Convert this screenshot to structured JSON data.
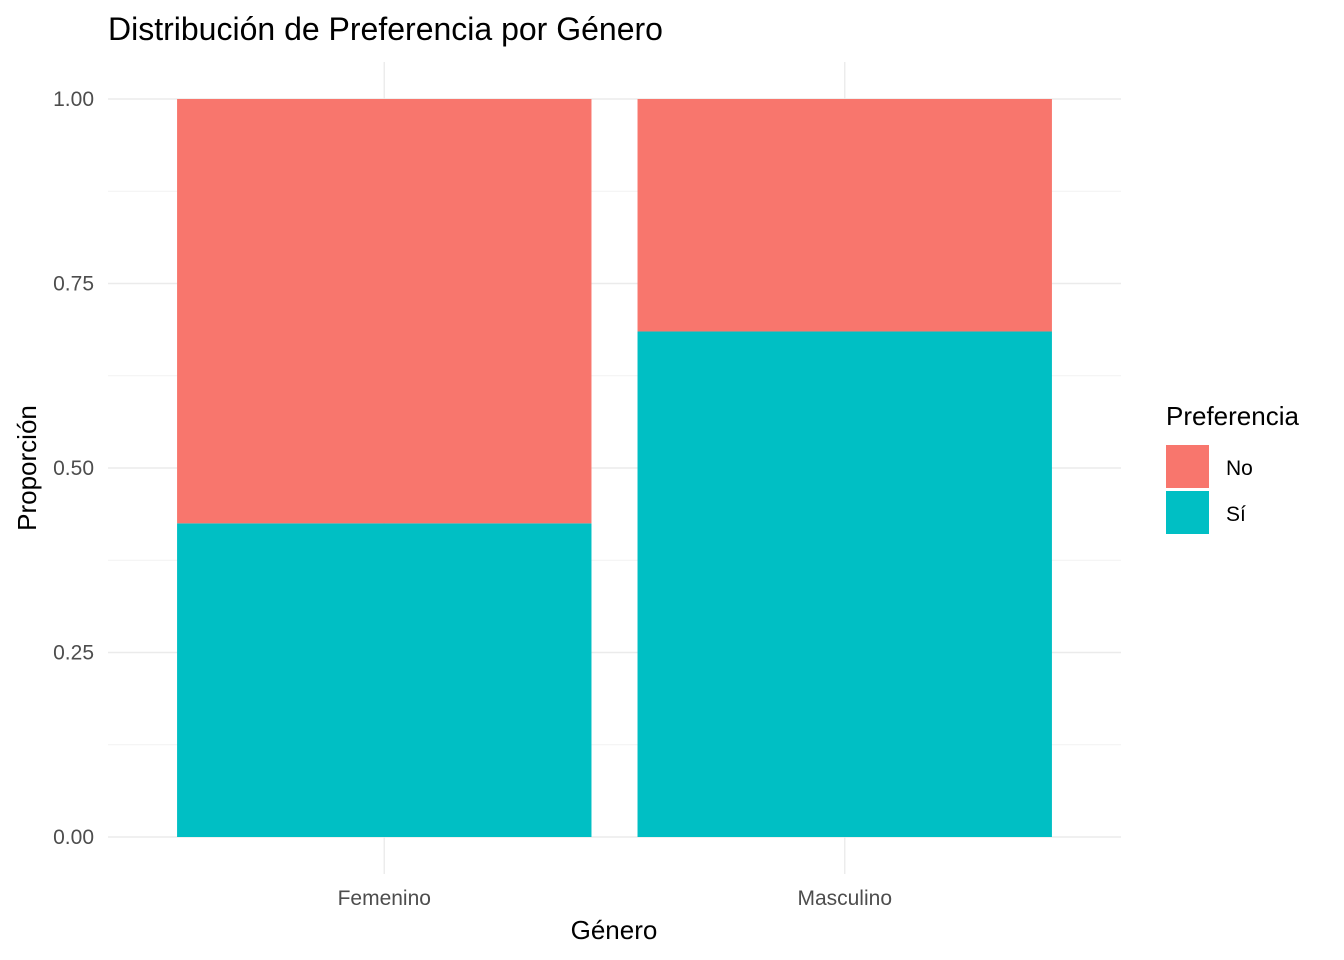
{
  "chart_data": {
    "type": "bar",
    "stacked": true,
    "title": "Distribución de Preferencia por Género",
    "xlabel": "Género",
    "ylabel": "Proporción",
    "categories": [
      "Femenino",
      "Masculino"
    ],
    "series": [
      {
        "name": "Sí",
        "color": "#00BFC4",
        "values": [
          0.425,
          0.685
        ]
      },
      {
        "name": "No",
        "color": "#F8766D",
        "values": [
          0.575,
          0.315
        ]
      }
    ],
    "ylim": [
      0,
      1
    ],
    "yticks": [
      0,
      0.25,
      0.5,
      0.75,
      1
    ],
    "ytick_labels": [
      "0.00",
      "0.25",
      "0.50",
      "0.75",
      "1.00"
    ],
    "grid": true,
    "legend": {
      "title": "Preferencia",
      "position": "right",
      "entries": [
        {
          "label": "No",
          "color": "#F8766D"
        },
        {
          "label": "Sí",
          "color": "#00BFC4"
        }
      ]
    }
  }
}
